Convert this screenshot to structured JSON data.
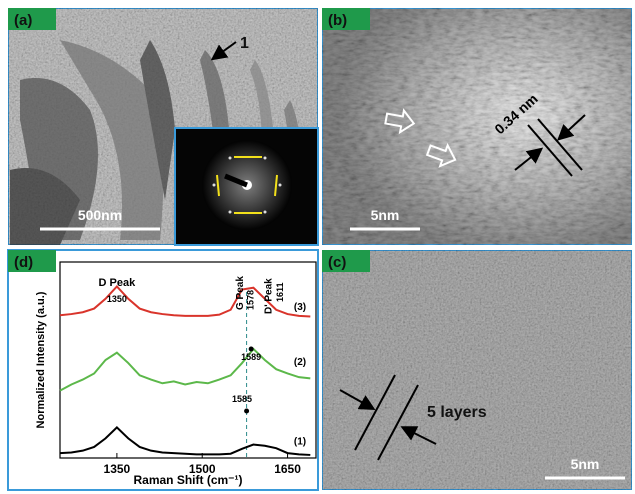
{
  "panels": {
    "a": {
      "label": "(a)",
      "scale_bar": "500nm",
      "marker": "1"
    },
    "b": {
      "label": "(b)",
      "spacing": "0.34 nm",
      "scale_bar": "5nm"
    },
    "c": {
      "label": "(c)",
      "annotation": "5 layers",
      "scale_bar": "5nm"
    },
    "d": {
      "label": "(d)"
    }
  },
  "chart_data": {
    "type": "line",
    "xlabel": "Raman Shift (cm⁻¹)",
    "ylabel": "Normalized Intensity (a.u.)",
    "x": [
      1250,
      1270,
      1290,
      1310,
      1330,
      1350,
      1370,
      1390,
      1410,
      1430,
      1450,
      1470,
      1490,
      1510,
      1530,
      1550,
      1570,
      1590,
      1610,
      1630,
      1650,
      1670,
      1690
    ],
    "series": [
      {
        "name": "(3)",
        "color": "#d9342b",
        "values": [
          2.33,
          2.35,
          2.38,
          2.44,
          2.6,
          2.8,
          2.6,
          2.44,
          2.38,
          2.35,
          2.33,
          2.32,
          2.32,
          2.32,
          2.34,
          2.42,
          2.75,
          2.78,
          2.6,
          2.42,
          2.35,
          2.32,
          2.31
        ]
      },
      {
        "name": "(2)",
        "color": "#5cb84a",
        "values": [
          1.1,
          1.2,
          1.28,
          1.38,
          1.6,
          1.72,
          1.55,
          1.35,
          1.28,
          1.22,
          1.25,
          1.2,
          1.24,
          1.22,
          1.28,
          1.35,
          1.55,
          1.78,
          1.6,
          1.45,
          1.38,
          1.32,
          1.3
        ]
      },
      {
        "name": "(1)",
        "color": "#000000",
        "values": [
          0.08,
          0.09,
          0.12,
          0.18,
          0.32,
          0.5,
          0.32,
          0.18,
          0.12,
          0.09,
          0.08,
          0.07,
          0.06,
          0.06,
          0.06,
          0.07,
          0.15,
          0.22,
          0.2,
          0.16,
          0.08,
          0.06,
          0.05
        ]
      }
    ],
    "xlim": [
      1250,
      1700
    ],
    "xticks": [
      1350,
      1500,
      1650
    ],
    "ylim": [
      0,
      3.2
    ],
    "annotations": [
      "D Peak",
      "1350",
      "G Peak",
      "1578",
      "D' Peak",
      "1611",
      "1589",
      "1585"
    ]
  }
}
